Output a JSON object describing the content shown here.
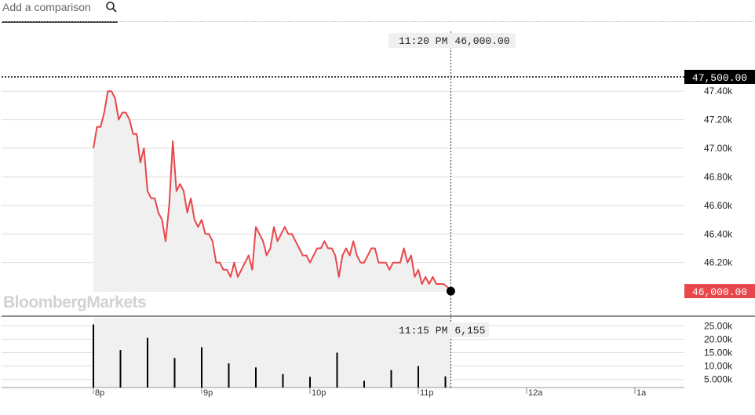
{
  "search": {
    "placeholder": "Add a comparison",
    "icon": "search-icon"
  },
  "watermark": "BloombergMarkets",
  "colors": {
    "line": "#e8474b",
    "area": "#f0f0f0",
    "price_label_bg": "#e8474b",
    "marker_label_bg": "#000000"
  },
  "crosshair": {
    "price_time": "11:20 PM",
    "price_value": "46,000.00",
    "volume_time": "11:15 PM",
    "volume_value": "6,155"
  },
  "reference_line": {
    "value": 47500,
    "label": "47,500.00"
  },
  "current_price": {
    "value": 46000,
    "label": "46,000.00"
  },
  "chart_data": [
    {
      "type": "line",
      "ylim": [
        45995,
        47500
      ],
      "y_ticks": [
        {
          "value": 47400,
          "label": "47.40k"
        },
        {
          "value": 47200,
          "label": "47.20k"
        },
        {
          "value": 47000,
          "label": "47.00k"
        },
        {
          "value": 46800,
          "label": "46.80k"
        },
        {
          "value": 46600,
          "label": "46.60k"
        },
        {
          "value": 46400,
          "label": "46.40k"
        },
        {
          "value": 46200,
          "label": "46.20k"
        }
      ],
      "x_ticks": [
        {
          "t": 0,
          "label": "8p"
        },
        {
          "t": 60,
          "label": "9p"
        },
        {
          "t": 120,
          "label": "10p"
        },
        {
          "t": 180,
          "label": "11p"
        },
        {
          "t": 240,
          "label": "12a"
        },
        {
          "t": 300,
          "label": "1a"
        }
      ],
      "x_unit": "minutes after 8p",
      "series": [
        {
          "t": [
            0,
            2,
            4,
            6,
            8,
            10,
            12,
            14,
            16,
            18,
            20,
            22,
            24,
            26,
            28,
            30,
            32,
            34,
            36,
            38,
            40,
            42,
            44,
            46,
            48,
            50,
            52,
            54,
            56,
            58,
            60,
            62,
            64,
            66,
            68,
            70,
            72,
            74,
            76,
            78,
            80,
            82,
            84,
            86,
            88,
            90,
            92,
            94,
            96,
            98,
            100,
            102,
            104,
            106,
            108,
            110,
            112,
            114,
            116,
            118,
            120,
            122,
            124,
            126,
            128,
            130,
            132,
            134,
            136,
            138,
            140,
            142,
            144,
            146,
            148,
            150,
            152,
            154,
            156,
            158,
            160,
            162,
            164,
            166,
            168,
            170,
            172,
            174,
            176,
            178,
            180,
            182,
            184,
            186,
            188,
            190,
            192,
            194,
            196,
            198
          ],
          "values": [
            47000,
            47150,
            47150,
            47250,
            47400,
            47400,
            47350,
            47200,
            47250,
            47250,
            47200,
            47100,
            47100,
            46900,
            47000,
            46700,
            46650,
            46650,
            46550,
            46500,
            46350,
            46600,
            47050,
            46700,
            46750,
            46700,
            46550,
            46650,
            46500,
            46450,
            46500,
            46400,
            46400,
            46350,
            46200,
            46200,
            46150,
            46150,
            46100,
            46200,
            46100,
            46150,
            46200,
            46250,
            46150,
            46450,
            46400,
            46350,
            46250,
            46300,
            46450,
            46350,
            46400,
            46450,
            46400,
            46400,
            46350,
            46300,
            46250,
            46250,
            46200,
            46250,
            46300,
            46300,
            46350,
            46300,
            46300,
            46250,
            46100,
            46250,
            46300,
            46250,
            46350,
            46250,
            46200,
            46200,
            46250,
            46300,
            46300,
            46200,
            46200,
            46200,
            46150,
            46200,
            46200,
            46200,
            46300,
            46200,
            46250,
            46100,
            46150,
            46050,
            46100,
            46050,
            46100,
            46050,
            46050,
            46050,
            46030,
            46000
          ]
        }
      ]
    },
    {
      "type": "bar",
      "ylim": [
        2000,
        28000
      ],
      "y_ticks": [
        {
          "value": 25000,
          "label": "25.00k"
        },
        {
          "value": 20000,
          "label": "20.00k"
        },
        {
          "value": 15000,
          "label": "15.00k"
        },
        {
          "value": 10000,
          "label": "10.00k"
        },
        {
          "value": 5000,
          "label": "5.000k"
        }
      ],
      "x_unit": "minutes after 8p",
      "t": [
        0,
        15,
        30,
        45,
        60,
        75,
        90,
        105,
        120,
        135,
        150,
        165,
        180,
        195
      ],
      "values": [
        25500,
        16000,
        20500,
        13000,
        17000,
        11000,
        9500,
        7000,
        6000,
        15000,
        4500,
        8500,
        10000,
        6155
      ]
    }
  ]
}
